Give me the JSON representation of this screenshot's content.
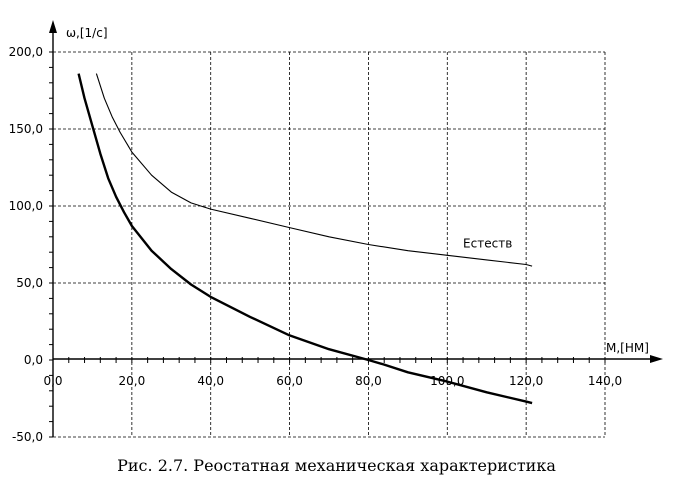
{
  "caption": "Рис. 2.7. Реостатная механическая характеристика",
  "chart_data": {
    "type": "line",
    "title": "",
    "xlabel": "M,[HM]",
    "ylabel": "ω,[1/c]",
    "xlim": [
      0,
      140
    ],
    "ylim": [
      -50,
      200
    ],
    "grid": true,
    "x_ticks": [
      0,
      20,
      40,
      60,
      80,
      100,
      120,
      140
    ],
    "x_tick_labels": [
      "0,0",
      "20,0",
      "40,0",
      "60,0",
      "80,0",
      "100,0",
      "120,0",
      "140,0"
    ],
    "y_ticks": [
      -50,
      0,
      50,
      100,
      150,
      200
    ],
    "y_tick_labels": [
      "-50,0",
      "0,0",
      "50,0",
      "100,0",
      "150,0",
      "200,0"
    ],
    "series": [
      {
        "name": "",
        "color": "#000000",
        "style": "thick",
        "x": [
          6.5,
          8,
          10,
          12,
          14,
          16,
          18,
          20,
          25,
          30,
          35,
          40,
          50,
          60,
          70,
          80,
          84,
          90,
          100,
          110,
          120,
          121.5
        ],
        "y": [
          186,
          170,
          152,
          134,
          118,
          106,
          96,
          87,
          71,
          59,
          49,
          41,
          28,
          16,
          7,
          0,
          -3,
          -8,
          -14,
          -21,
          -27,
          -28
        ]
      },
      {
        "name": "Естеств",
        "color": "#000000",
        "style": "thin",
        "x": [
          11,
          13,
          15,
          17,
          20,
          25,
          30,
          35,
          40,
          50,
          60,
          70,
          80,
          90,
          100,
          110,
          120,
          121.5
        ],
        "y": [
          186,
          170,
          158,
          148,
          135,
          120,
          109,
          102,
          98,
          92,
          86,
          80,
          75,
          71,
          68,
          65,
          62,
          61
        ]
      }
    ],
    "annotations": [
      {
        "text": "Естеств",
        "x": 104,
        "y": 73
      }
    ]
  }
}
